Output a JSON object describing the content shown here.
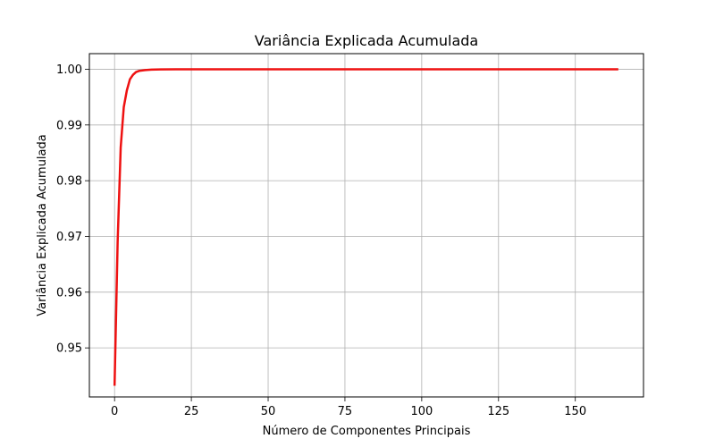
{
  "chart_data": {
    "type": "line",
    "title": "Variância Explicada Acumulada",
    "xlabel": "Número de Componentes Principais",
    "ylabel": "Variância Explicada Acumulada",
    "xlim": [
      -8.2,
      172.2
    ],
    "ylim": [
      0.9412,
      1.0028
    ],
    "xticks": [
      0,
      25,
      50,
      75,
      100,
      125,
      150
    ],
    "yticks": [
      0.95,
      0.96,
      0.97,
      0.98,
      0.99,
      1.0
    ],
    "xtick_labels": [
      "0",
      "25",
      "50",
      "75",
      "100",
      "125",
      "150"
    ],
    "ytick_labels": [
      "0.95",
      "0.96",
      "0.97",
      "0.98",
      "0.99",
      "1.00"
    ],
    "grid": true,
    "line_color": "#ee1111",
    "series": [
      {
        "x": [
          0,
          1,
          2,
          3,
          4,
          5,
          6,
          7,
          8,
          10,
          12,
          15,
          20,
          30,
          50,
          100,
          150,
          164
        ],
        "values": [
          0.9432,
          0.969,
          0.986,
          0.9932,
          0.9962,
          0.9982,
          0.999,
          0.9995,
          0.9997,
          0.99985,
          0.99993,
          0.99998,
          1.0,
          1.0,
          1.0,
          1.0,
          1.0,
          1.0
        ]
      }
    ]
  }
}
